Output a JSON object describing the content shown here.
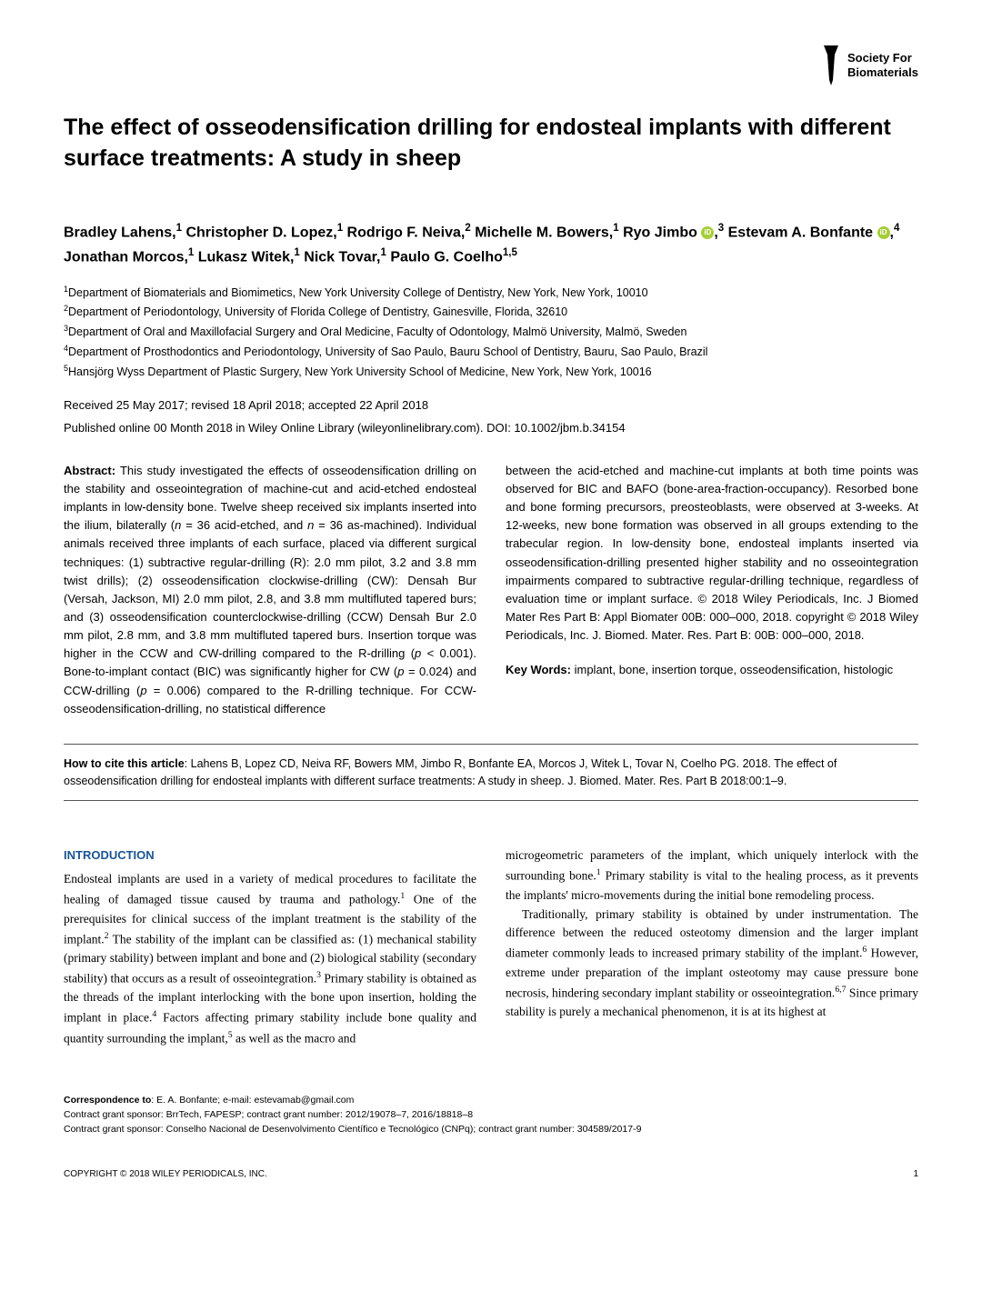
{
  "logo": {
    "line1": "Society For",
    "line2": "Biomaterials"
  },
  "title": "The effect of osseodensification drilling for endosteal implants with different surface treatments: A study in sheep",
  "authors_html": "Bradley Lahens,<sup>1</sup> Christopher D. Lopez,<sup>1</sup> Rodrigo F. Neiva,<sup>2</sup> Michelle M. Bowers,<sup>1</sup> Ryo Jimbo <span class='orcid-icon' data-name='orcid-icon' data-interactable='false'></span>,<sup>3</sup> Estevam A. Bonfante <span class='orcid-icon' data-name='orcid-icon' data-interactable='false'></span>,<sup>4</sup> Jonathan Morcos,<sup>1</sup> Lukasz Witek,<sup>1</sup> Nick Tovar,<sup>1</sup> Paulo G. Coelho<sup>1,5</sup>",
  "affiliations": [
    "<sup>1</sup>Department of Biomaterials and Biomimetics, New York University College of Dentistry, New York, New York, 10010",
    "<sup>2</sup>Department of Periodontology, University of Florida College of Dentistry, Gainesville, Florida, 32610",
    "<sup>3</sup>Department of Oral and Maxillofacial Surgery and Oral Medicine, Faculty of Odontology, Malmö University, Malmö, Sweden",
    "<sup>4</sup>Department of Prosthodontics and Periodontology, University of Sao Paulo, Bauru School of Dentistry, Bauru, Sao Paulo, Brazil",
    "<sup>5</sup>Hansjörg Wyss Department of Plastic Surgery, New York University School of Medicine, New York, New York, 10016"
  ],
  "received": "Received 25 May 2017; revised 18 April 2018; accepted 22 April 2018",
  "published": "Published online 00 Month 2018 in Wiley Online Library (wileyonlinelibrary.com). DOI: 10.1002/jbm.b.34154",
  "abstract_label": "Abstract:",
  "abstract_col1": " This study investigated the effects of osseodensification drilling on the stability and osseointegration of machine-cut and acid-etched endosteal implants in low-density bone. Twelve sheep received six implants inserted into the ilium, bilaterally (<i>n</i> = 36 acid-etched, and <i>n</i> = 36 as-machined). Individual animals received three implants of each surface, placed via different surgical techniques: (1) subtractive regular-drilling (R): 2.0 mm pilot, 3.2 and 3.8 mm twist drills); (2) osseodensification clockwise-drilling (CW): Densah Bur (Versah, Jackson, MI) 2.0 mm pilot, 2.8, and 3.8 mm multifluted tapered burs; and (3) osseodensification counterclockwise-drilling (CCW) Densah Bur 2.0 mm pilot, 2.8 mm, and 3.8 mm multifluted tapered burs. Insertion torque was higher in the CCW and CW-drilling compared to the R-drilling (<i>p</i> < 0.001). Bone-to-implant contact (BIC) was significantly higher for CW (<i>p</i> = 0.024) and CCW-drilling (<i>p</i> = 0.006) compared to the R-drilling technique. For CCW-osseodensification-drilling, no statistical difference",
  "abstract_col2_p1": "between the acid-etched and machine-cut implants at both time points was observed for BIC and BAFO (bone-area-fraction-occupancy). Resorbed bone and bone forming precursors, preosteoblasts, were observed at 3-weeks. At 12-weeks, new bone formation was observed in all groups extending to the trabecular region. In low-density bone, endosteal implants inserted via osseodensification-drilling presented higher stability and no osseointegration impairments compared to subtractive regular-drilling technique, regardless of evaluation time or implant surface. © 2018 Wiley Periodicals, Inc. J Biomed Mater Res Part B: Appl Biomater 00B: 000–000, 2018. copyright © 2018 Wiley Periodicals, Inc. J. Biomed. Mater. Res. Part B: 00B: 000–000, 2018.",
  "keywords_label": "Key Words:",
  "keywords": " implant, bone, insertion torque, osseodensification, histologic",
  "citation_label": "How to cite this article",
  "citation_text": ": Lahens B, Lopez CD, Neiva RF, Bowers MM, Jimbo R, Bonfante EA, Morcos J, Witek L, Tovar N, Coelho PG. 2018. The effect of osseodensification drilling for endosteal implants with different surface treatments: A study in sheep. J. Biomed. Mater. Res. Part B 2018:00:1–9.",
  "intro_heading": "INTRODUCTION",
  "intro_col1": "Endosteal implants are used in a variety of medical procedures to facilitate the healing of damaged tissue caused by trauma and pathology.<sup>1</sup> One of the prerequisites for clinical success of the implant treatment is the stability of the implant.<sup>2</sup> The stability of the implant can be classified as: (1) mechanical stability (primary stability) between implant and bone and (2) biological stability (secondary stability) that occurs as a result of osseointegration.<sup>3</sup> Primary stability is obtained as the threads of the implant interlocking with the bone upon insertion, holding the implant in place.<sup>4</sup> Factors affecting primary stability include bone quality and quantity surrounding the implant,<sup>5</sup> as well as the macro and",
  "intro_col2_p1": "microgeometric parameters of the implant, which uniquely interlock with the surrounding bone.<sup>1</sup> Primary stability is vital to the healing process, as it prevents the implants' micro-movements during the initial bone remodeling process.",
  "intro_col2_p2": "Traditionally, primary stability is obtained by under instrumentation. The difference between the reduced osteotomy dimension and the larger implant diameter commonly leads to increased primary stability of the implant.<sup>6</sup> However, extreme under preparation of the implant osteotomy may cause pressure bone necrosis, hindering secondary implant stability or osseointegration.<sup>6,7</sup> Since primary stability is purely a mechanical phenomenon, it is at its highest at",
  "correspondence_label": "Correspondence to",
  "correspondence": ": E. A. Bonfante; e-mail: estevamab@gmail.com",
  "grant1": "Contract grant sponsor: BrrTech, FAPESP; contract grant number: 2012/19078–7, 2016/18818–8",
  "grant2": "Contract grant sponsor: Conselho Nacional de Desenvolvimento Científico e Tecnológico (CNPq); contract grant number: 304589/2017-9",
  "copyright": "COPYRIGHT © 2018 WILEY PERIODICALS, INC.",
  "page_num": "1",
  "colors": {
    "heading_blue": "#1a5490",
    "orcid_green": "#a6ce39"
  }
}
